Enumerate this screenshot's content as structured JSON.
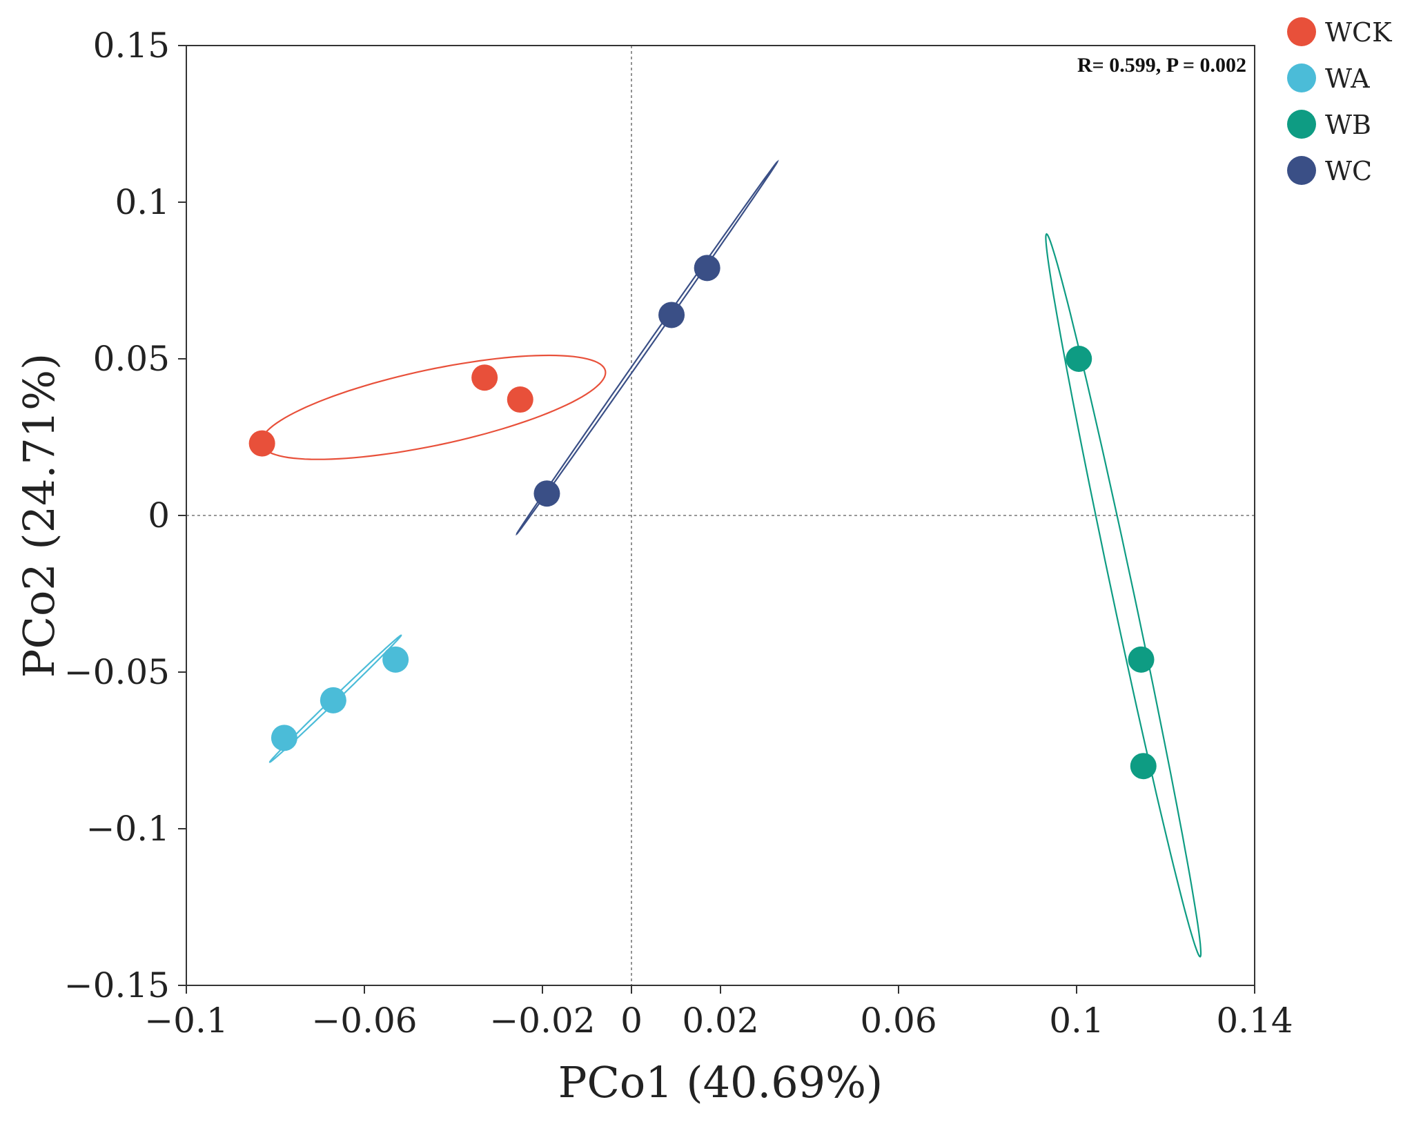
{
  "chart_data": {
    "type": "scatter",
    "title": "",
    "xlabel": "PCo1 (40.69%)",
    "ylabel": "PCo2 (24.71%)",
    "xlim": [
      -0.1,
      0.14
    ],
    "ylim": [
      -0.15,
      0.15
    ],
    "xticks": [
      -0.1,
      -0.06,
      -0.02,
      0,
      0.02,
      0.06,
      0.1,
      0.14
    ],
    "xtick_labels": [
      "−0.1",
      "−0.06",
      "−0.02",
      "0",
      "0.02",
      "0.06",
      "0.1",
      "0.14"
    ],
    "yticks": [
      0.15,
      0.1,
      0.05,
      0,
      -0.05,
      -0.1,
      -0.15
    ],
    "ytick_labels": [
      "0.15",
      "0.1",
      "0.05",
      "0",
      "−0.05",
      "−0.1",
      "−0.15"
    ],
    "annotation": "R= 0.599, P = 0.002",
    "reference_lines": {
      "x": 0,
      "y": 0
    },
    "legend_position": "top-right-outside",
    "series": [
      {
        "name": "WCK",
        "color": "#e8503a",
        "points": [
          [
            -0.083,
            0.023
          ],
          [
            -0.033,
            0.044
          ],
          [
            -0.025,
            0.037
          ]
        ],
        "ellipse": {
          "center": [
            -0.0445,
            0.0345
          ],
          "half_axes": [
            0.0395,
            0.0085
          ],
          "angle_deg": -12
        }
      },
      {
        "name": "WA",
        "color": "#4bbcd8",
        "points": [
          [
            -0.078,
            -0.071
          ],
          [
            -0.067,
            -0.059
          ],
          [
            -0.053,
            -0.046
          ]
        ],
        "ellipse": {
          "center": [
            -0.0665,
            -0.0585
          ],
          "half_axes": [
            0.0205,
            0.0005
          ],
          "angle_deg": -44
        }
      },
      {
        "name": "WB",
        "color": "#0e9c83",
        "points": [
          [
            0.1005,
            0.05
          ],
          [
            0.1145,
            -0.046
          ],
          [
            0.115,
            -0.08
          ]
        ],
        "ellipse": {
          "center": [
            0.1105,
            -0.0255
          ],
          "half_axes": [
            0.083,
            0.0024
          ],
          "angle_deg": 78
        }
      },
      {
        "name": "WC",
        "color": "#3a4f86",
        "points": [
          [
            -0.019,
            0.007
          ],
          [
            0.009,
            0.064
          ],
          [
            0.017,
            0.079
          ]
        ],
        "ellipse": {
          "center": [
            0.0035,
            0.0535
          ],
          "half_axes": [
            0.051,
            0.0004
          ],
          "angle_deg": -55
        }
      }
    ]
  }
}
